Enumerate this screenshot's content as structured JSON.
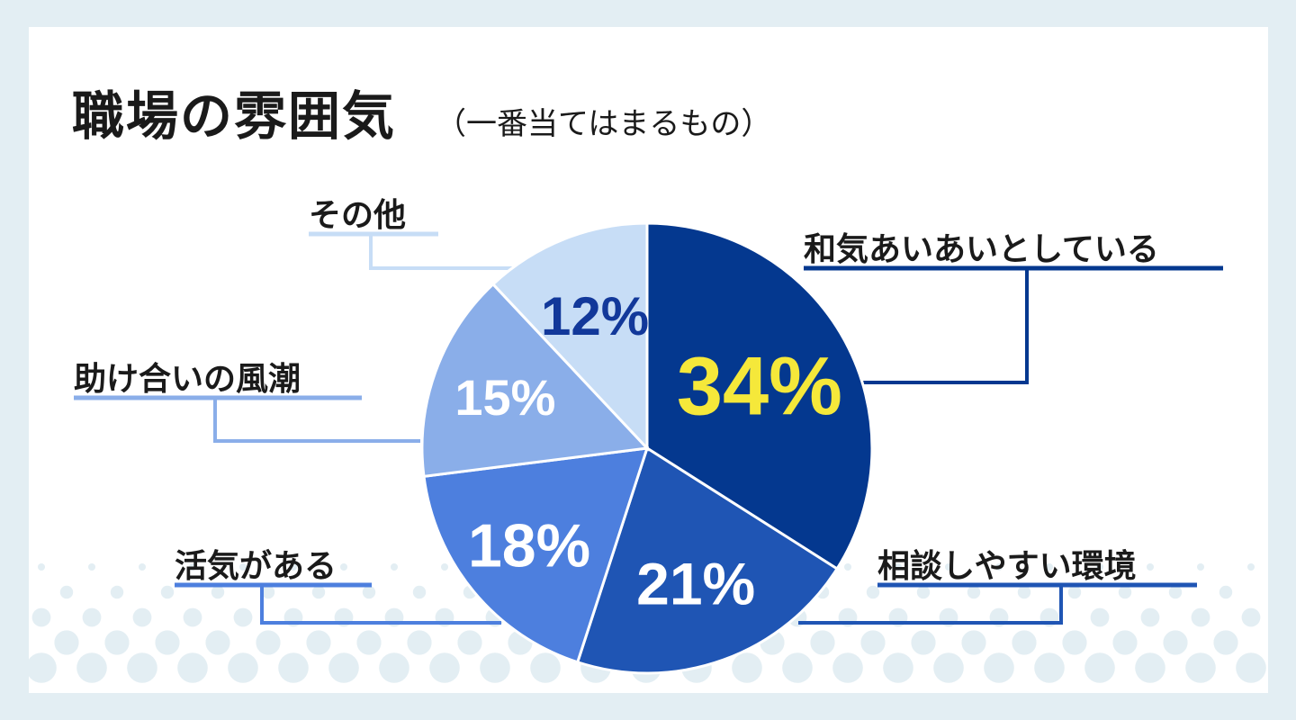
{
  "title": "職場の雰囲気",
  "subtitle": "（一番当てはまるもの）",
  "chart_data": {
    "type": "pie",
    "title": "職場の雰囲気",
    "subtitle": "（一番当てはまるもの）",
    "slices": [
      {
        "label": "和気あいあいとしている",
        "value": 34,
        "display": "34%",
        "color": "#04388f",
        "text_color": "#f5e83a"
      },
      {
        "label": "相談しやすい環境",
        "value": 21,
        "display": "21%",
        "color": "#1f55b4",
        "text_color": "#ffffff"
      },
      {
        "label": "活気がある",
        "value": 18,
        "display": "18%",
        "color": "#4d7fde",
        "text_color": "#ffffff"
      },
      {
        "label": "助け合いの風潮",
        "value": 15,
        "display": "15%",
        "color": "#8aaee9",
        "text_color": "#ffffff"
      },
      {
        "label": "その他",
        "value": 12,
        "display": "12%",
        "color": "#c7ddf6",
        "text_color": "#12389a"
      }
    ]
  }
}
